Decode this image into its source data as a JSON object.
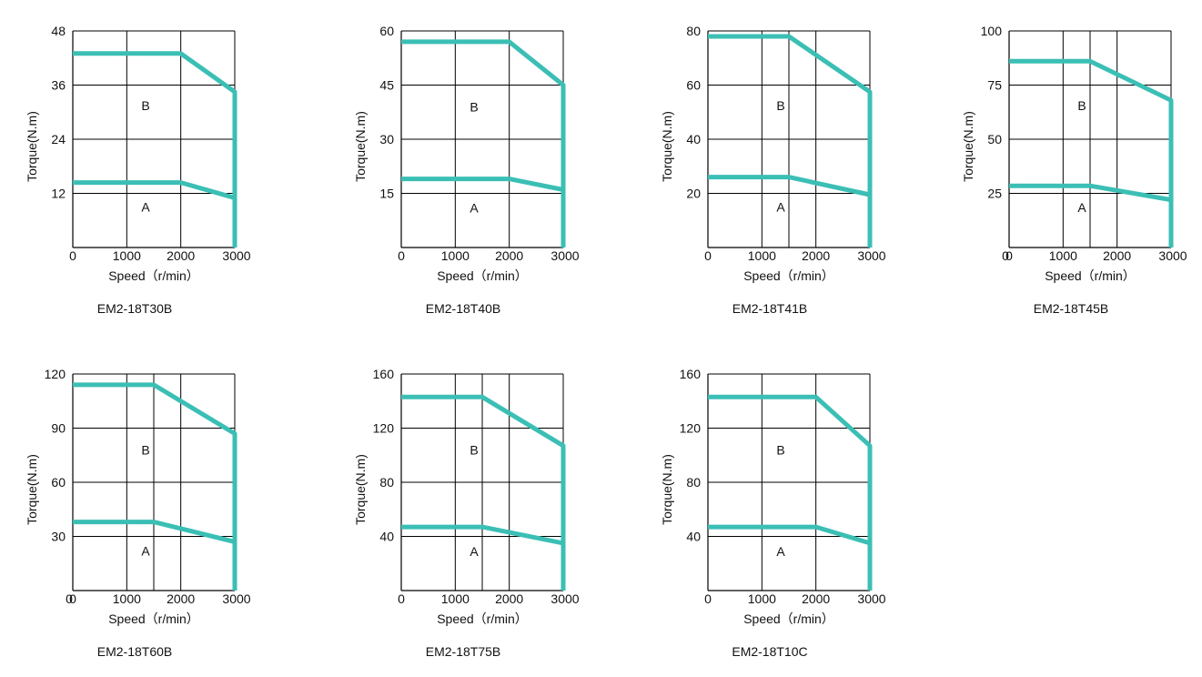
{
  "style": {
    "curve_color": "#3bbfb5",
    "grid_color": "#000000",
    "background": "#ffffff"
  },
  "chart_data": [
    {
      "type": "line",
      "title": "EM2-18T30B",
      "xlabel": "Speed（r/min）",
      "ylabel": "Torque(N.m)",
      "xlim": [
        0,
        3000
      ],
      "ylim": [
        0,
        48
      ],
      "xticks": [
        0,
        1000,
        2000,
        3000
      ],
      "yticks": [
        12,
        24,
        36,
        48
      ],
      "y_origin_label": false,
      "x_gridlines": [
        1000,
        2000,
        3000
      ],
      "regions": [
        {
          "label": "A",
          "x": 1350,
          "y": 9
        },
        {
          "label": "B",
          "x": 1350,
          "y": 31.5
        }
      ],
      "series": [
        {
          "x": [
            0,
            2000,
            3000,
            3000
          ],
          "y": [
            43,
            43,
            34.5,
            0
          ]
        },
        {
          "x": [
            0,
            2000,
            3000
          ],
          "y": [
            14.4,
            14.4,
            11
          ]
        }
      ]
    },
    {
      "type": "line",
      "title": "EM2-18T40B",
      "xlabel": "Speed（r/min）",
      "ylabel": "Torque(N.m)",
      "xlim": [
        0,
        3000
      ],
      "ylim": [
        0,
        60
      ],
      "xticks": [
        0,
        1000,
        2000,
        3000
      ],
      "yticks": [
        15,
        30,
        45,
        60
      ],
      "y_origin_label": false,
      "x_gridlines": [
        1000,
        2000,
        3000
      ],
      "regions": [
        {
          "label": "A",
          "x": 1350,
          "y": 11
        },
        {
          "label": "B",
          "x": 1350,
          "y": 39
        }
      ],
      "series": [
        {
          "x": [
            0,
            2000,
            3000,
            3000
          ],
          "y": [
            57,
            57,
            45,
            0
          ]
        },
        {
          "x": [
            0,
            2000,
            3000
          ],
          "y": [
            19,
            19,
            16
          ]
        }
      ]
    },
    {
      "type": "line",
      "title": "EM2-18T41B",
      "xlabel": "Speed（r/min）",
      "ylabel": "Torque(N.m)",
      "xlim": [
        0,
        3000
      ],
      "ylim": [
        0,
        80
      ],
      "xticks": [
        0,
        1000,
        2000,
        3000
      ],
      "yticks": [
        20,
        40,
        60,
        80
      ],
      "y_origin_label": false,
      "x_gridlines": [
        1000,
        1500,
        2000,
        3000
      ],
      "regions": [
        {
          "label": "A",
          "x": 1350,
          "y": 15
        },
        {
          "label": "B",
          "x": 1350,
          "y": 52.5
        }
      ],
      "series": [
        {
          "x": [
            0,
            1500,
            3000,
            3000
          ],
          "y": [
            78,
            78,
            57.5,
            0
          ]
        },
        {
          "x": [
            0,
            1500,
            3000
          ],
          "y": [
            26,
            26,
            19.5
          ]
        }
      ]
    },
    {
      "type": "line",
      "title": "EM2-18T45B",
      "xlabel": "Speed（r/min）",
      "ylabel": "Torque(N.m)",
      "xlim": [
        0,
        3000
      ],
      "ylim": [
        0,
        100
      ],
      "xticks": [
        0,
        1000,
        2000,
        3000
      ],
      "yticks": [
        25,
        50,
        75,
        100
      ],
      "y_origin_label": true,
      "x_gridlines": [
        1000,
        1500,
        2000,
        3000
      ],
      "regions": [
        {
          "label": "A",
          "x": 1350,
          "y": 18.5
        },
        {
          "label": "B",
          "x": 1350,
          "y": 65.5
        }
      ],
      "series": [
        {
          "x": [
            0,
            1500,
            3000,
            3000
          ],
          "y": [
            86,
            86,
            68,
            0
          ]
        },
        {
          "x": [
            0,
            1500,
            3000
          ],
          "y": [
            28.5,
            28.5,
            22
          ]
        }
      ]
    },
    {
      "type": "line",
      "title": "EM2-18T60B",
      "xlabel": "Speed（r/min）",
      "ylabel": "Torque(N.m)",
      "xlim": [
        0,
        3000
      ],
      "ylim": [
        0,
        120
      ],
      "xticks": [
        0,
        1000,
        2000,
        3000
      ],
      "yticks": [
        30,
        60,
        90,
        120
      ],
      "y_origin_label": true,
      "x_gridlines": [
        1000,
        1500,
        2000,
        3000
      ],
      "regions": [
        {
          "label": "A",
          "x": 1350,
          "y": 22
        },
        {
          "label": "B",
          "x": 1350,
          "y": 78
        }
      ],
      "series": [
        {
          "x": [
            0,
            1500,
            3000,
            3000
          ],
          "y": [
            114,
            114,
            87,
            0
          ]
        },
        {
          "x": [
            0,
            1500,
            3000
          ],
          "y": [
            38,
            38,
            27
          ]
        }
      ]
    },
    {
      "type": "line",
      "title": "EM2-18T75B",
      "xlabel": "Speed（r/min）",
      "ylabel": "Torque(N.m)",
      "xlim": [
        0,
        3000
      ],
      "ylim": [
        0,
        160
      ],
      "xticks": [
        0,
        1000,
        2000,
        3000
      ],
      "yticks": [
        40,
        80,
        120,
        160
      ],
      "y_origin_label": false,
      "x_gridlines": [
        1000,
        1500,
        2000,
        3000
      ],
      "regions": [
        {
          "label": "A",
          "x": 1350,
          "y": 29
        },
        {
          "label": "B",
          "x": 1350,
          "y": 104
        }
      ],
      "series": [
        {
          "x": [
            0,
            1500,
            3000,
            3000
          ],
          "y": [
            143,
            143,
            107,
            0
          ]
        },
        {
          "x": [
            0,
            1500,
            3000
          ],
          "y": [
            47,
            47,
            35
          ]
        }
      ]
    },
    {
      "type": "line",
      "title": "EM2-18T10C",
      "xlabel": "Speed（r/min）",
      "ylabel": "Torque(N.m)",
      "xlim": [
        0,
        3000
      ],
      "ylim": [
        0,
        160
      ],
      "xticks": [
        0,
        1000,
        2000,
        3000
      ],
      "yticks": [
        40,
        80,
        120,
        160
      ],
      "y_origin_label": false,
      "x_gridlines": [
        1000,
        2000,
        3000
      ],
      "regions": [
        {
          "label": "A",
          "x": 1350,
          "y": 29
        },
        {
          "label": "B",
          "x": 1350,
          "y": 104
        }
      ],
      "series": [
        {
          "x": [
            0,
            2000,
            3000,
            3000
          ],
          "y": [
            143,
            143,
            107,
            0
          ]
        },
        {
          "x": [
            0,
            2000,
            3000
          ],
          "y": [
            47,
            47,
            35
          ]
        }
      ]
    }
  ]
}
